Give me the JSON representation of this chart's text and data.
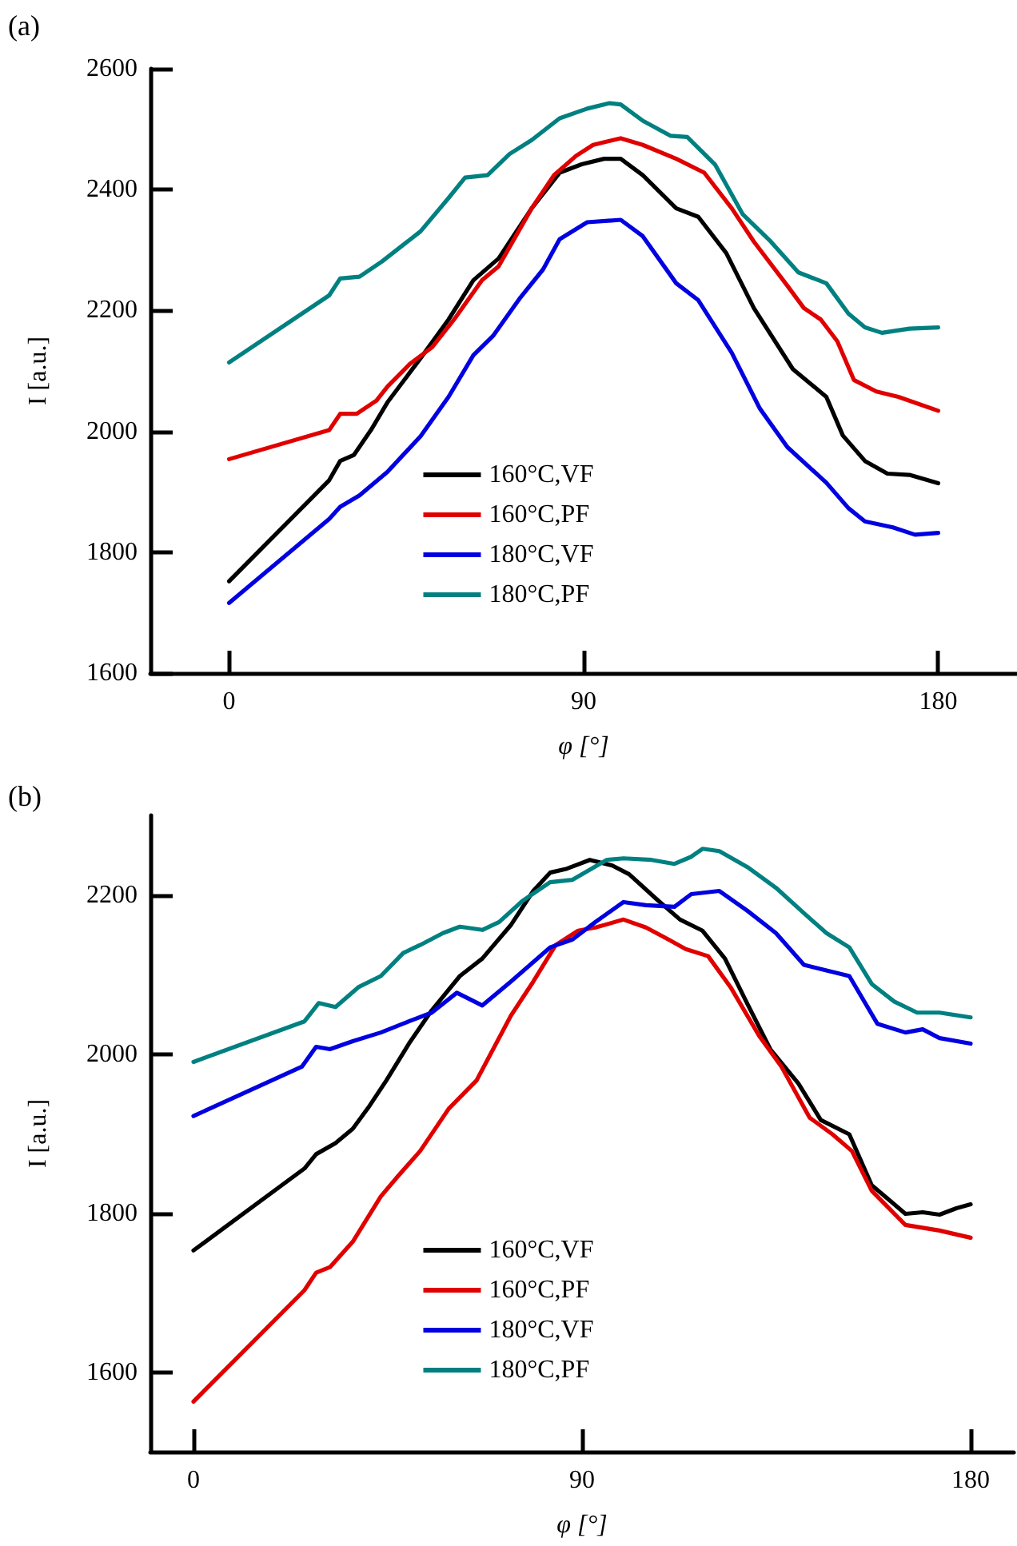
{
  "chart_data": [
    {
      "type": "line",
      "title": "(a)",
      "xlabel": "φ [°]",
      "ylabel": "I [a.u.]",
      "xlim": [
        -20,
        200
      ],
      "ylim": [
        1600,
        2600
      ],
      "xticks": [
        0,
        90,
        180
      ],
      "yticks": [
        1600,
        1800,
        2000,
        2200,
        2400,
        2600
      ],
      "grid": false,
      "legend": "bottom",
      "marker": "none",
      "line_style": "solid",
      "series": [
        {
          "name": "160°C,VF",
          "color": "#000000",
          "x": [
            0,
            25.4,
            28.2,
            31.7,
            36,
            40.2,
            48.6,
            55.7,
            62,
            68.4,
            76.8,
            83.9,
            89.5,
            95.2,
            99.4,
            105,
            113.5,
            119.1,
            126.2,
            133.2,
            143.1,
            151.6,
            155.8,
            161.4,
            167.1,
            172.7,
            180
          ],
          "values": [
            1752,
            1919,
            1951,
            1961,
            2002,
            2048,
            2121,
            2185,
            2250,
            2286,
            2369,
            2428,
            2442,
            2451,
            2451,
            2424,
            2369,
            2355,
            2295,
            2204,
            2103,
            2057,
            1993,
            1951,
            1930,
            1928,
            1914
          ]
        },
        {
          "name": "160°C,PF",
          "color": "#e00000",
          "x": [
            0,
            25.4,
            28.2,
            32.4,
            37.4,
            40.2,
            45.8,
            51.5,
            57.1,
            64.2,
            68.4,
            76.8,
            82.5,
            88.1,
            92.4,
            99.4,
            105,
            113.5,
            120.6,
            127.6,
            133.2,
            141.7,
            145.9,
            150.2,
            154.4,
            158.6,
            164.3,
            169.9,
            180
          ],
          "values": [
            1954,
            2002,
            2029,
            2029,
            2051,
            2074,
            2111,
            2139,
            2185,
            2250,
            2273,
            2369,
            2424,
            2456,
            2474,
            2485,
            2474,
            2451,
            2428,
            2369,
            2314,
            2241,
            2204,
            2185,
            2149,
            2085,
            2066,
            2057,
            2034
          ]
        },
        {
          "name": "180°C,VF",
          "color": "#0000e0",
          "x": [
            0,
            25.4,
            28.2,
            33.1,
            40.2,
            48.6,
            55.7,
            62,
            67,
            74,
            79.7,
            83.9,
            90.9,
            99.4,
            105,
            113.5,
            119.1,
            127.6,
            134.7,
            141.7,
            151.6,
            157.2,
            161.4,
            168.5,
            174.1,
            180
          ],
          "values": [
            1716,
            1855,
            1875,
            1894,
            1933,
            1992,
            2057,
            2126,
            2158,
            2222,
            2268,
            2318,
            2346,
            2350,
            2323,
            2245,
            2217,
            2130,
            2038,
            1974,
            1915,
            1873,
            1851,
            1841,
            1829,
            1832
          ]
        },
        {
          "name": "180°C,PF",
          "color": "#008080",
          "x": [
            0,
            25.4,
            28.2,
            33.1,
            38.8,
            48.6,
            55.7,
            59.9,
            65.6,
            71.2,
            76.8,
            83.9,
            90.9,
            96.6,
            99.4,
            105,
            112.1,
            116.3,
            123.4,
            130.4,
            137.5,
            144.5,
            151.6,
            157.2,
            161.4,
            165.7,
            172.7,
            180
          ],
          "values": [
            2114,
            2225,
            2253,
            2256,
            2281,
            2331,
            2386,
            2420,
            2424,
            2459,
            2482,
            2518,
            2534,
            2543,
            2541,
            2514,
            2489,
            2487,
            2441,
            2359,
            2314,
            2263,
            2245,
            2195,
            2172,
            2163,
            2170,
            2172
          ]
        }
      ]
    },
    {
      "type": "line",
      "title": "(b)",
      "xlabel": "φ [°]",
      "ylabel": "I [a.u.]",
      "xlim": [
        -10,
        190
      ],
      "ylim": [
        1500,
        2300
      ],
      "xticks": [
        0,
        90,
        180
      ],
      "yticks": [
        1600,
        1800,
        2000,
        2200
      ],
      "grid": false,
      "legend": "bottom",
      "marker": "none",
      "line_style": "solid",
      "series": [
        {
          "name": "160°C,VF",
          "color": "#000000",
          "x": [
            0,
            25.7,
            28.4,
            32.9,
            36.9,
            40.8,
            44.7,
            49.9,
            55.2,
            61.7,
            66.9,
            73.5,
            78.7,
            82.6,
            86.5,
            91.8,
            97,
            100.9,
            107.4,
            112.7,
            117.9,
            123.1,
            128.3,
            133.6,
            140.1,
            145.3,
            151.9,
            157.1,
            161,
            164.9,
            168.9,
            172.8,
            176.7,
            180
          ],
          "values": [
            1753,
            1856,
            1874,
            1888,
            1906,
            1935,
            1967,
            2013,
            2055,
            2098,
            2120,
            2162,
            2205,
            2228,
            2233,
            2244,
            2237,
            2226,
            2194,
            2169,
            2155,
            2120,
            2063,
            2006,
            1963,
            1917,
            1899,
            1835,
            1817,
            1799,
            1801,
            1798,
            1806,
            1811
          ]
        },
        {
          "name": "160°C,PF",
          "color": "#e00000",
          "x": [
            0,
            25.7,
            28.4,
            31.6,
            36.9,
            43.4,
            47.3,
            52.5,
            59.1,
            65.6,
            73.5,
            78.7,
            83.9,
            89.1,
            93.1,
            99.6,
            104.8,
            110,
            114,
            119.2,
            124.4,
            131,
            136.2,
            142.7,
            148,
            152.5,
            157.1,
            164.9,
            172.8,
            180
          ],
          "values": [
            1563,
            1703,
            1725,
            1732,
            1764,
            1821,
            1846,
            1878,
            1931,
            1967,
            2048,
            2091,
            2137,
            2155,
            2159,
            2169,
            2159,
            2144,
            2132,
            2123,
            2084,
            2023,
            1984,
            1920,
            1899,
            1878,
            1828,
            1785,
            1778,
            1769
          ]
        },
        {
          "name": "180°C,VF",
          "color": "#0000e0",
          "x": [
            0,
            25.1,
            28.4,
            31.6,
            36.9,
            43.4,
            49.9,
            55.2,
            61,
            66.9,
            73.5,
            82.6,
            87.8,
            93.1,
            99.6,
            104.8,
            111.4,
            115.3,
            121.8,
            128.3,
            134.9,
            141.4,
            146.6,
            151.9,
            158.4,
            164.9,
            168.9,
            172.8,
            180
          ],
          "values": [
            1922,
            1984,
            2009,
            2006,
            2016,
            2027,
            2041,
            2052,
            2077,
            2061,
            2091,
            2134,
            2144,
            2166,
            2191,
            2187,
            2185,
            2201,
            2205,
            2180,
            2152,
            2112,
            2105,
            2098,
            2038,
            2027,
            2031,
            2020,
            2013
          ]
        },
        {
          "name": "180°C,PF",
          "color": "#008080",
          "x": [
            0,
            25.7,
            29,
            32.9,
            38.2,
            43.4,
            48.6,
            52.5,
            57.8,
            61.7,
            66.9,
            70.8,
            76.1,
            82.6,
            87.8,
            95.7,
            99.6,
            106.1,
            111.4,
            115.3,
            117.9,
            121.8,
            128.3,
            134.9,
            141.4,
            146.6,
            151.9,
            157.1,
            162.3,
            167.6,
            172.8,
            180
          ],
          "values": [
            1990,
            2041,
            2064,
            2059,
            2084,
            2098,
            2127,
            2137,
            2152,
            2160,
            2156,
            2166,
            2192,
            2216,
            2219,
            2244,
            2246,
            2244,
            2239,
            2248,
            2258,
            2255,
            2235,
            2209,
            2177,
            2152,
            2134,
            2088,
            2066,
            2052,
            2052,
            2046
          ]
        }
      ]
    }
  ]
}
